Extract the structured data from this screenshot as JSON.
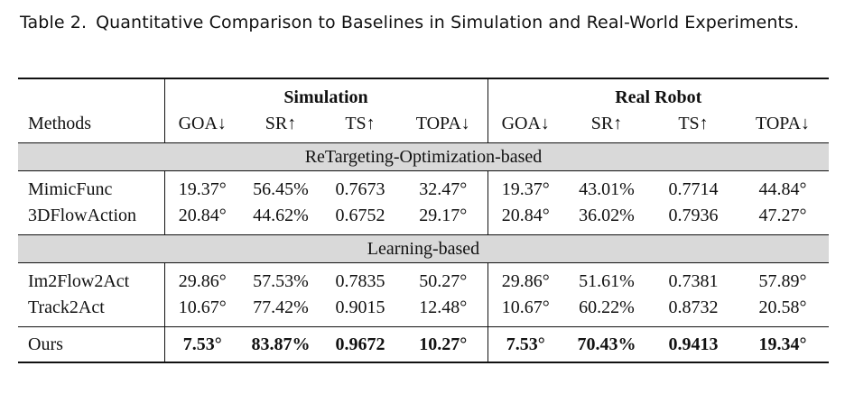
{
  "caption": {
    "label": "Table 2.",
    "text": "Quantitative Comparison to Baselines in Simulation and Real-World Experiments."
  },
  "table": {
    "group_headers": [
      "Simulation",
      "Real Robot"
    ],
    "methods_header": "Methods",
    "metric_headers": [
      "GOA↓",
      "SR↑",
      "TS↑",
      "TOPA↓",
      "GOA↓",
      "SR↑",
      "TS↑",
      "TOPA↓"
    ],
    "sections": [
      {
        "title": "ReTargeting-Optimization-based",
        "rows": [
          {
            "method": "MimicFunc",
            "values": [
              "19.37°",
              "56.45%",
              "0.7673",
              "32.47°",
              "19.37°",
              "43.01%",
              "0.7714",
              "44.84°"
            ]
          },
          {
            "method": "3DFlowAction",
            "values": [
              "20.84°",
              "44.62%",
              "0.6752",
              "29.17°",
              "20.84°",
              "36.02%",
              "0.7936",
              "47.27°"
            ]
          }
        ]
      },
      {
        "title": "Learning-based",
        "rows": [
          {
            "method": "Im2Flow2Act",
            "values": [
              "29.86°",
              "57.53%",
              "0.7835",
              "50.27°",
              "29.86°",
              "51.61%",
              "0.7381",
              "57.89°"
            ]
          },
          {
            "method": "Track2Act",
            "values": [
              "10.67°",
              "77.42%",
              "0.9015",
              "12.48°",
              "10.67°",
              "60.22%",
              "0.8732",
              "20.58°"
            ]
          }
        ]
      }
    ],
    "ours": {
      "method": "Ours",
      "values": [
        "7.53°",
        "83.87%",
        "0.9672",
        "10.27°",
        "7.53°",
        "70.43%",
        "0.9413",
        "19.34°"
      ]
    }
  }
}
